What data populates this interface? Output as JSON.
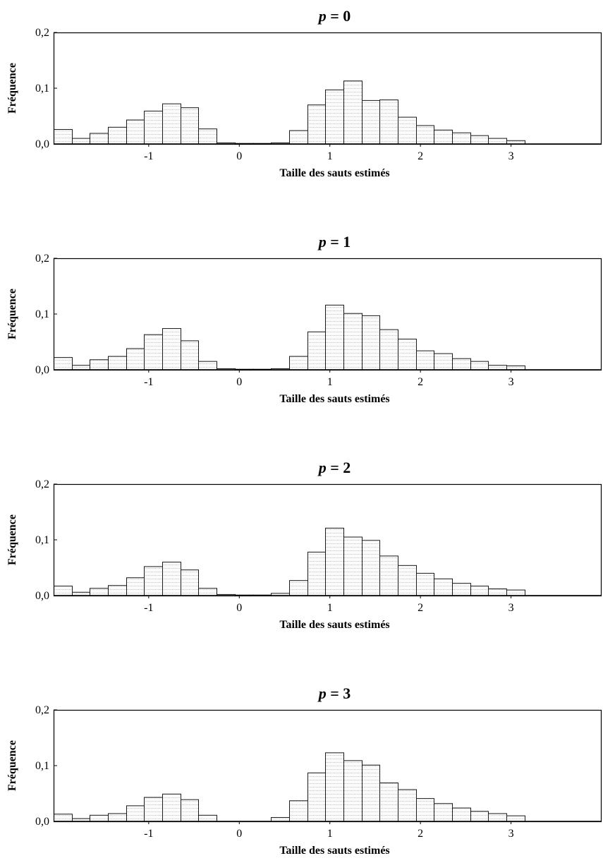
{
  "chart_data": [
    {
      "type": "bar",
      "title": "p = 0",
      "title_var": "p",
      "title_value": "= 0",
      "xlabel": "Taille des sauts estimés",
      "ylabel": "Fréquence",
      "xlim": [
        -2.05,
        4.0
      ],
      "ylim": [
        0,
        0.2
      ],
      "bin_width": 0.2,
      "first_bin_start": -2.05,
      "xticks": [
        -1,
        0,
        1,
        2,
        3
      ],
      "xtick_labels": [
        "-1",
        "0",
        "1",
        "2",
        "3"
      ],
      "yticks": [
        0,
        0.1,
        0.2
      ],
      "ytick_labels": [
        "0,0",
        "0,1",
        "0,2"
      ],
      "values": [
        0.026,
        0.01,
        0.019,
        0.03,
        0.043,
        0.059,
        0.072,
        0.065,
        0.027,
        0.002,
        0.001,
        0.001,
        0.002,
        0.024,
        0.07,
        0.097,
        0.113,
        0.078,
        0.079,
        0.048,
        0.033,
        0.025,
        0.02,
        0.015,
        0.01,
        0.006
      ]
    },
    {
      "type": "bar",
      "title": "p = 1",
      "title_var": "p",
      "title_value": "= 1",
      "xlabel": "Taille des sauts estimés",
      "ylabel": "Fréquence",
      "xlim": [
        -2.05,
        4.0
      ],
      "ylim": [
        0,
        0.2
      ],
      "bin_width": 0.2,
      "first_bin_start": -2.05,
      "xticks": [
        -1,
        0,
        1,
        2,
        3
      ],
      "xtick_labels": [
        "-1",
        "0",
        "1",
        "2",
        "3"
      ],
      "yticks": [
        0,
        0.1,
        0.2
      ],
      "ytick_labels": [
        "0,0",
        "0,1",
        "0,2"
      ],
      "values": [
        0.022,
        0.008,
        0.018,
        0.024,
        0.038,
        0.063,
        0.074,
        0.052,
        0.015,
        0.002,
        0.001,
        0.001,
        0.002,
        0.024,
        0.068,
        0.116,
        0.101,
        0.097,
        0.072,
        0.055,
        0.034,
        0.029,
        0.02,
        0.015,
        0.008,
        0.007
      ]
    },
    {
      "type": "bar",
      "title": "p = 2",
      "title_var": "p",
      "title_value": "= 2",
      "xlabel": "Taille des sauts estimés",
      "ylabel": "Fréquence",
      "xlim": [
        -2.05,
        4.0
      ],
      "ylim": [
        0,
        0.2
      ],
      "bin_width": 0.2,
      "first_bin_start": -2.05,
      "xticks": [
        -1,
        0,
        1,
        2,
        3
      ],
      "xtick_labels": [
        "-1",
        "0",
        "1",
        "2",
        "3"
      ],
      "yticks": [
        0,
        0.1,
        0.2
      ],
      "ytick_labels": [
        "0,0",
        "0,1",
        "0,2"
      ],
      "values": [
        0.017,
        0.006,
        0.013,
        0.018,
        0.032,
        0.052,
        0.06,
        0.046,
        0.013,
        0.002,
        0.001,
        0.001,
        0.004,
        0.027,
        0.078,
        0.121,
        0.105,
        0.099,
        0.071,
        0.054,
        0.04,
        0.03,
        0.022,
        0.017,
        0.012,
        0.01
      ]
    },
    {
      "type": "bar",
      "title": "p = 3",
      "title_var": "p",
      "title_value": "= 3",
      "xlabel": "Taille des sauts estimés",
      "ylabel": "Fréquence",
      "xlim": [
        -2.05,
        4.0
      ],
      "ylim": [
        0,
        0.2
      ],
      "bin_width": 0.2,
      "first_bin_start": -2.05,
      "xticks": [
        -1,
        0,
        1,
        2,
        3
      ],
      "xtick_labels": [
        "-1",
        "0",
        "1",
        "2",
        "3"
      ],
      "yticks": [
        0,
        0.1,
        0.2
      ],
      "ytick_labels": [
        "0,0",
        "0,1",
        "0,2"
      ],
      "values": [
        0.013,
        0.005,
        0.011,
        0.014,
        0.028,
        0.043,
        0.049,
        0.039,
        0.011,
        0.0,
        0.0,
        0.0,
        0.007,
        0.037,
        0.087,
        0.123,
        0.109,
        0.101,
        0.069,
        0.057,
        0.041,
        0.032,
        0.024,
        0.018,
        0.014,
        0.01
      ]
    }
  ],
  "style": {
    "bar_fill": "#fbfbfb",
    "bar_stroke": "#1a1a1a",
    "bar_dot_line": "#c4c4c4",
    "axis_color": "#000000"
  }
}
